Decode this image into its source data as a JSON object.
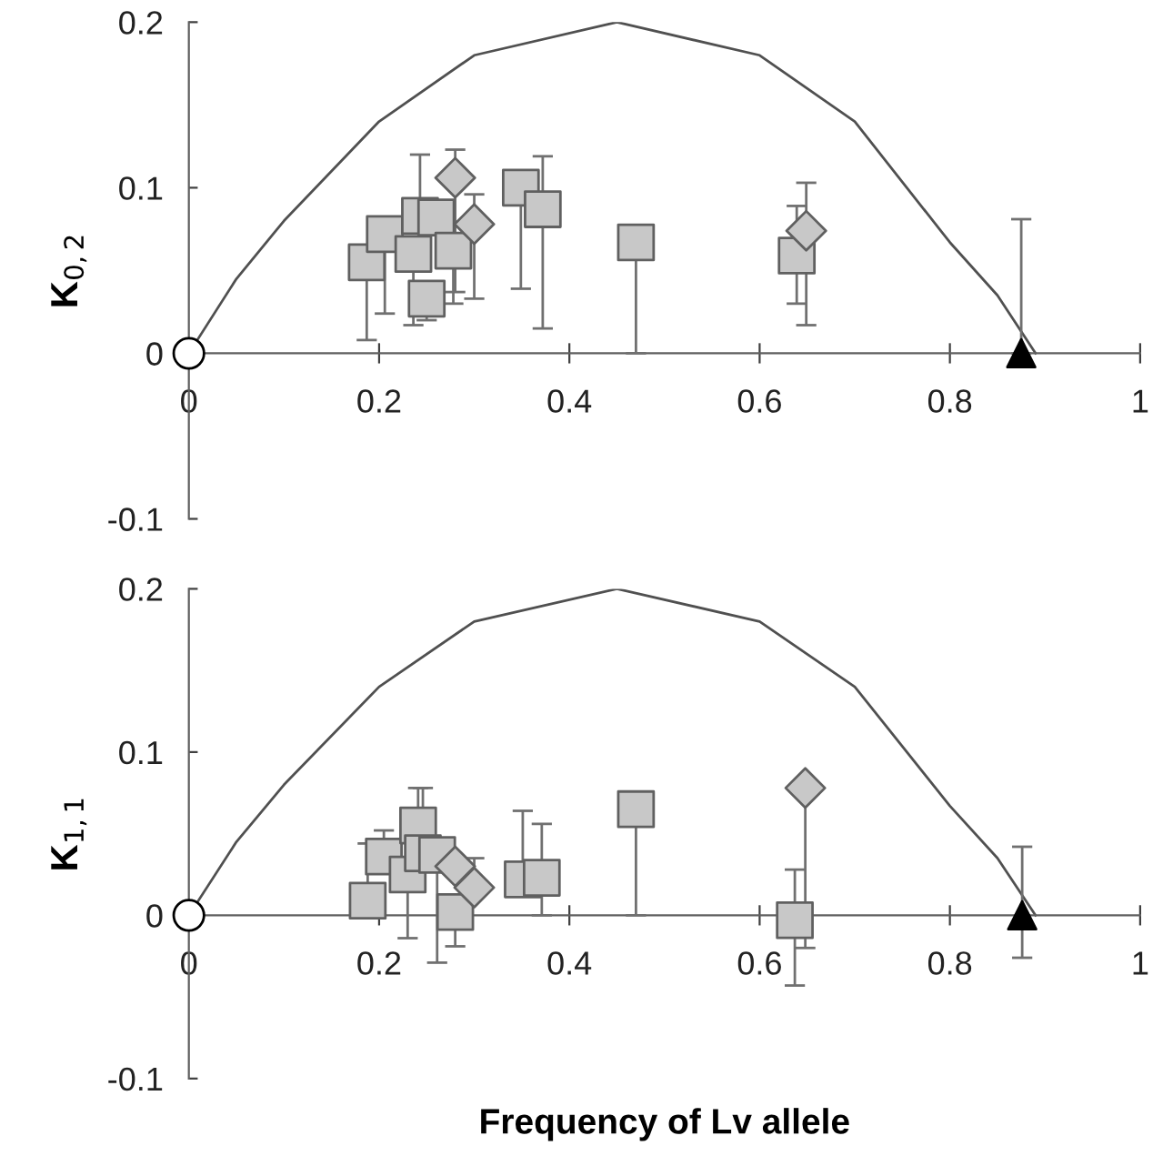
{
  "chart_data": [
    {
      "type": "scatter",
      "ylabel": "K$_{0,2}$",
      "xlim": [
        0,
        1
      ],
      "ylim": [
        -0.1,
        0.2
      ],
      "xticks": [
        0,
        0.2,
        0.4,
        0.6,
        0.8,
        1
      ],
      "yticks": [
        -0.1,
        0,
        0.1,
        0.2
      ],
      "grid": false,
      "legend": false,
      "series": [
        {
          "type": "line",
          "color": "#505050",
          "marker": "none",
          "x": [
            0,
            0.05,
            0.1,
            0.2,
            0.3,
            0.45,
            0.6,
            0.7,
            0.8,
            0.85,
            0.89
          ],
          "values": [
            0,
            0.045,
            0.08,
            0.14,
            0.18,
            0.2,
            0.18,
            0.14,
            0.067,
            0.035,
            0
          ]
        },
        {
          "type": "scatter",
          "marker": "square",
          "color": "#c8c8c8",
          "x": [
            0.187,
            0.206,
            0.243,
            0.236,
            0.25,
            0.26,
            0.278,
            0.349,
            0.372,
            0.47,
            0.639
          ],
          "values": [
            0.055,
            0.072,
            0.083,
            0.06,
            0.033,
            0.082,
            0.062,
            0.1,
            0.087,
            0.067,
            0.059
          ],
          "errors": [
            [
              0.008,
              0.055
            ],
            [
              0.024,
              0.072
            ],
            [
              0.083,
              0.12
            ],
            [
              0.017,
              0.06
            ],
            [
              0.02,
              0.033
            ],
            [
              0.082,
              0.082
            ],
            [
              0.03,
              0.062
            ],
            [
              0.039,
              0.101
            ],
            [
              0.015,
              0.119
            ],
            [
              0,
              0.067
            ],
            [
              0.03,
              0.089
            ]
          ]
        },
        {
          "type": "scatter",
          "marker": "diamond",
          "color": "#c8c8c8",
          "x": [
            0.28,
            0.3,
            0.649
          ],
          "values": [
            0.106,
            0.078,
            0.074
          ],
          "errors": [
            [
              0.037,
              0.123
            ],
            [
              0.033,
              0.096
            ],
            [
              0.017,
              0.103
            ]
          ]
        },
        {
          "type": "scatter",
          "marker": "triangle",
          "color": "#000000",
          "x": [
            0.875
          ],
          "values": [
            0
          ],
          "errors": [
            [
              0,
              0.081
            ]
          ]
        },
        {
          "type": "scatter",
          "marker": "circle",
          "color": "#ffffff",
          "x": [
            0
          ],
          "values": [
            0
          ]
        }
      ]
    },
    {
      "type": "scatter",
      "ylabel": "K$_{1,1}$",
      "xlabel": "Frequency of Lv allele",
      "xlim": [
        0,
        1
      ],
      "ylim": [
        -0.1,
        0.2
      ],
      "xticks": [
        0,
        0.2,
        0.4,
        0.6,
        0.8,
        1
      ],
      "yticks": [
        -0.1,
        0,
        0.1,
        0.2
      ],
      "grid": false,
      "legend": false,
      "series": [
        {
          "type": "line",
          "color": "#505050",
          "marker": "none",
          "x": [
            0,
            0.05,
            0.1,
            0.2,
            0.3,
            0.45,
            0.6,
            0.7,
            0.8,
            0.85,
            0.89
          ],
          "values": [
            0,
            0.045,
            0.08,
            0.14,
            0.18,
            0.2,
            0.18,
            0.14,
            0.067,
            0.035,
            0
          ]
        },
        {
          "type": "scatter",
          "marker": "square",
          "color": "#c8c8c8",
          "x": [
            0.188,
            0.205,
            0.241,
            0.23,
            0.246,
            0.261,
            0.28,
            0.351,
            0.371,
            0.47,
            0.637
          ],
          "values": [
            0.009,
            0.036,
            0.055,
            0.025,
            0.038,
            0.037,
            0.002,
            0.022,
            0.023,
            0.065,
            -0.003
          ],
          "errors": [
            [
              0.009,
              0.044
            ],
            [
              0.036,
              0.052
            ],
            [
              0.055,
              0.078
            ],
            [
              -0.014,
              0.025
            ],
            [
              0.038,
              0.078
            ],
            [
              -0.029,
              0.037
            ],
            [
              -0.019,
              0.002
            ],
            [
              0.022,
              0.064
            ],
            [
              0,
              0.056
            ],
            [
              0,
              0.065
            ],
            [
              -0.043,
              0.028
            ]
          ]
        },
        {
          "type": "scatter",
          "marker": "diamond",
          "color": "#c8c8c8",
          "x": [
            0.28,
            0.3,
            0.648
          ],
          "values": [
            0.03,
            0.017,
            0.078
          ],
          "errors": [
            [
              0.03,
              0.03
            ],
            [
              0.017,
              0.035
            ],
            [
              -0.02,
              0.078
            ]
          ]
        },
        {
          "type": "scatter",
          "marker": "triangle",
          "color": "#000000",
          "x": [
            0.876
          ],
          "values": [
            0
          ],
          "errors": [
            [
              -0.026,
              0.042
            ]
          ]
        },
        {
          "type": "scatter",
          "marker": "circle",
          "color": "#ffffff",
          "x": [
            0
          ],
          "values": [
            0
          ]
        }
      ]
    }
  ]
}
